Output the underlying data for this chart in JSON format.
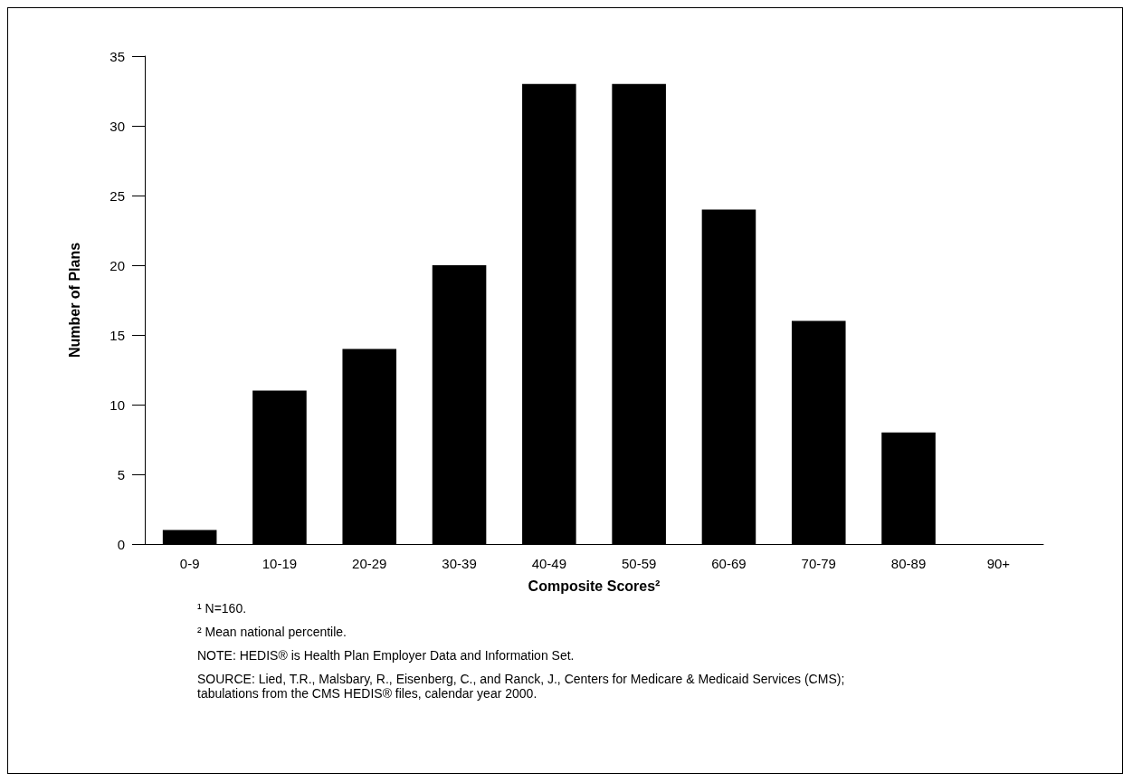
{
  "chart_data": {
    "type": "bar",
    "xlabel": "Composite Scores²",
    "ylabel": "Number of Plans",
    "categories": [
      "0-9",
      "10-19",
      "20-29",
      "30-39",
      "40-49",
      "50-59",
      "60-69",
      "70-79",
      "80-89",
      "90+"
    ],
    "values": [
      1,
      11,
      14,
      20,
      33,
      33,
      24,
      16,
      8,
      0
    ],
    "color": "#000000",
    "ylim": [
      0,
      35
    ],
    "yticks": [
      0,
      5,
      10,
      15,
      20,
      25,
      30,
      35
    ],
    "grid": false,
    "annotations": [
      "¹ N=160.",
      "² Mean national percentile.",
      "NOTE: HEDIS® is Health Plan Employer Data and Information Set.",
      "SOURCE: Lied, T.R., Malsbary, R., Eisenberg, C., and Ranck, J., Centers for Medicare & Medicaid Services (CMS); tabulations from the CMS HEDIS® files, calendar year 2000."
    ]
  }
}
